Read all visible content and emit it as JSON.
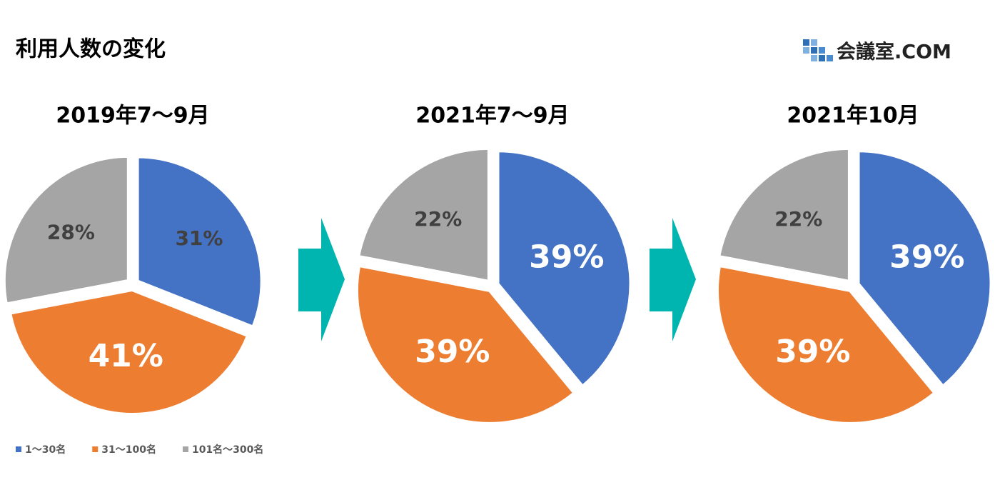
{
  "header": {
    "title": "利用人数の変化",
    "logo": "会議室.COM"
  },
  "chart_data": [
    {
      "type": "pie",
      "title": "2019年7〜9月",
      "categories": [
        "1〜30名",
        "31〜100名",
        "101名〜300名"
      ],
      "colors": [
        "#4472c4",
        "#ed7d31",
        "#a5a5a5"
      ],
      "values": [
        31,
        41,
        28
      ],
      "value_labels": [
        "31%",
        "41%",
        "28%"
      ]
    },
    {
      "type": "pie",
      "title": "2021年7〜9月",
      "categories": [
        "1〜30名",
        "31〜100名",
        "101名〜300名"
      ],
      "colors": [
        "#4472c4",
        "#ed7d31",
        "#a5a5a5"
      ],
      "values": [
        39,
        39,
        22
      ],
      "value_labels": [
        "39%",
        "39%",
        "22%"
      ]
    },
    {
      "type": "pie",
      "title": "2021年10月",
      "categories": [
        "1〜30名",
        "31〜100名",
        "101名〜300名"
      ],
      "colors": [
        "#4472c4",
        "#ed7d31",
        "#a5a5a5"
      ],
      "values": [
        39,
        39,
        22
      ],
      "value_labels": [
        "39%",
        "39%",
        "22%"
      ]
    }
  ]
}
